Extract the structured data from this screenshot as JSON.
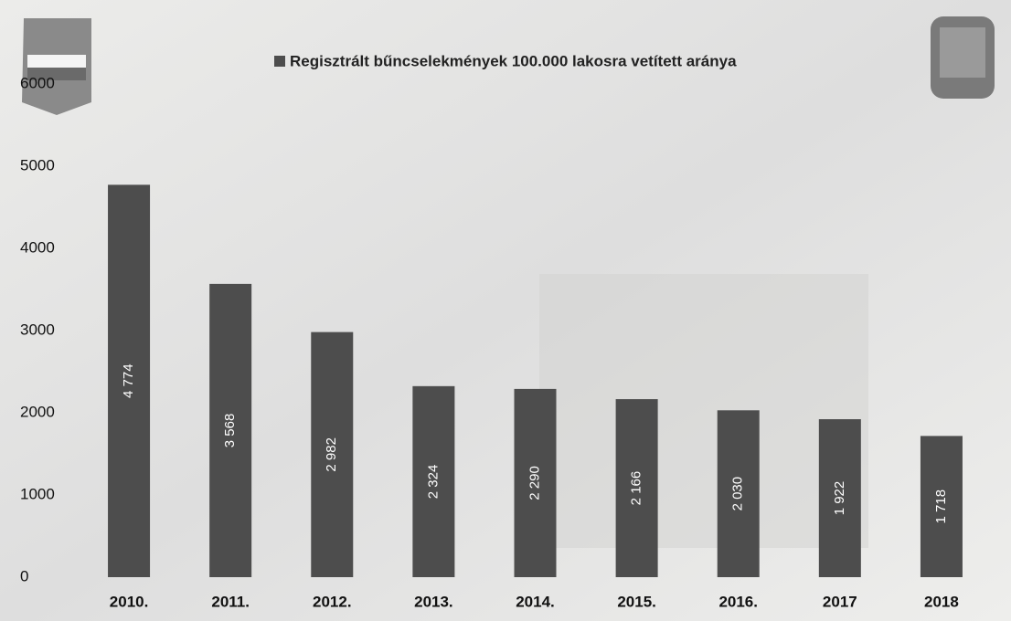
{
  "chart_data": {
    "type": "bar",
    "categories": [
      "2010.",
      "2011.",
      "2012.",
      "2013.",
      "2014.",
      "2015.",
      "2016.",
      "2017",
      "2018"
    ],
    "series": [
      {
        "name": "Regisztrált bűncselekmények 100.000 lakosra vetített aránya",
        "color": "#4d4d4d",
        "values": [
          4774,
          3568,
          2982,
          2324,
          2290,
          2166,
          2030,
          1922,
          1718
        ],
        "value_labels": [
          "4 774",
          "3 568",
          "2 982",
          "2 324",
          "2 290",
          "2 166",
          "2 030",
          "1 922",
          "1 718"
        ]
      }
    ],
    "ylim": [
      0,
      6000
    ],
    "yticks": [
      0,
      1000,
      2000,
      3000,
      4000,
      5000,
      6000
    ],
    "grid": false,
    "legend": "top"
  }
}
